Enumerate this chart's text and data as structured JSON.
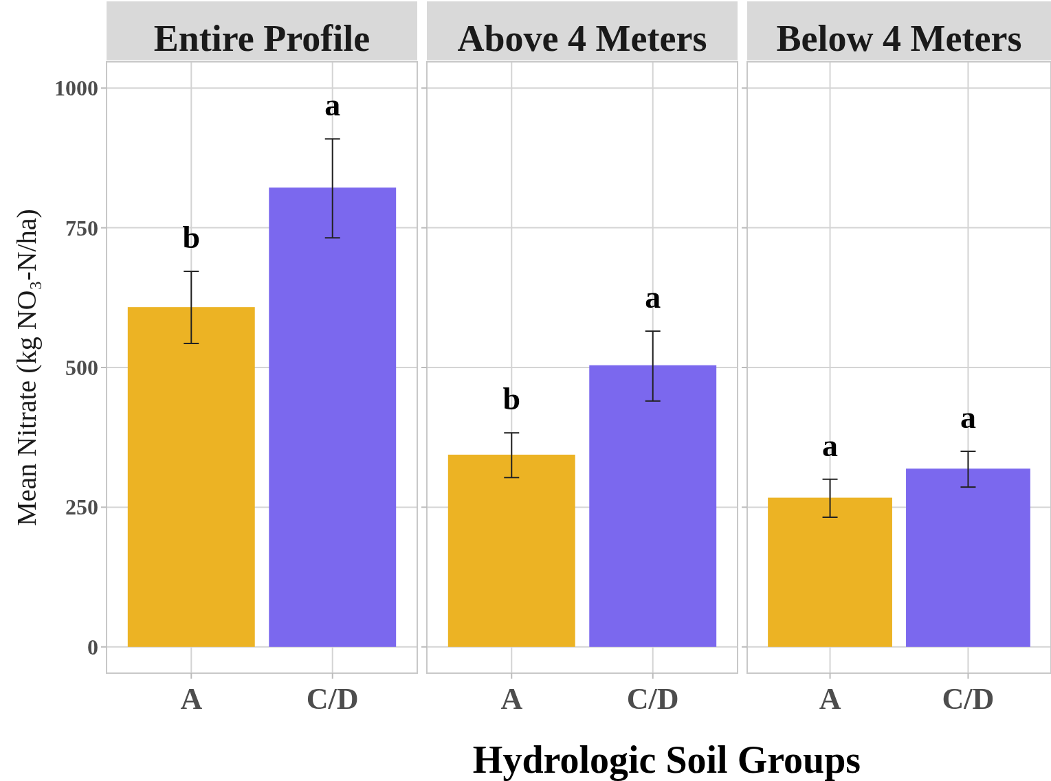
{
  "chart_data": [
    {
      "type": "bar",
      "title": "Entire Profile",
      "ylabel": "Mean Nitrate (kg NO₃-N/ha)",
      "categories": [
        "A",
        "C/D"
      ],
      "values": [
        608,
        822
      ],
      "colors": [
        "#ecb324",
        "#7b68ee"
      ],
      "errors": [
        [
          543,
          672
        ],
        [
          732,
          909
        ]
      ],
      "ylim": [
        -47,
        1047
      ],
      "yticks": [
        0,
        250,
        500,
        750,
        1000
      ],
      "grid": true,
      "annotations": [
        "b",
        "a"
      ]
    },
    {
      "type": "bar",
      "title": "Above 4 Meters",
      "xlabel": "Hydrologic Soil Groups",
      "categories": [
        "A",
        "C/D"
      ],
      "values": [
        344,
        504
      ],
      "colors": [
        "#ecb324",
        "#7b68ee"
      ],
      "errors": [
        [
          303,
          383
        ],
        [
          440,
          565
        ]
      ],
      "ylim": [
        -47,
        1047
      ],
      "yticks": [
        0,
        250,
        500,
        750,
        1000
      ],
      "grid": true,
      "tick_labels": "x",
      "annotations": [
        "b",
        "a"
      ]
    },
    {
      "type": "bar",
      "title": "Below 4 Meters",
      "categories": [
        "A",
        "C/D"
      ],
      "values": [
        267,
        319
      ],
      "colors": [
        "#ecb324",
        "#7b68ee"
      ],
      "errors": [
        [
          232,
          300
        ],
        [
          286,
          350
        ]
      ],
      "ylim": [
        -47,
        1047
      ],
      "yticks": [
        0,
        250,
        500,
        750,
        1000
      ],
      "grid": true,
      "tick_labels": "x",
      "annotations": [
        "a",
        "a"
      ]
    }
  ]
}
